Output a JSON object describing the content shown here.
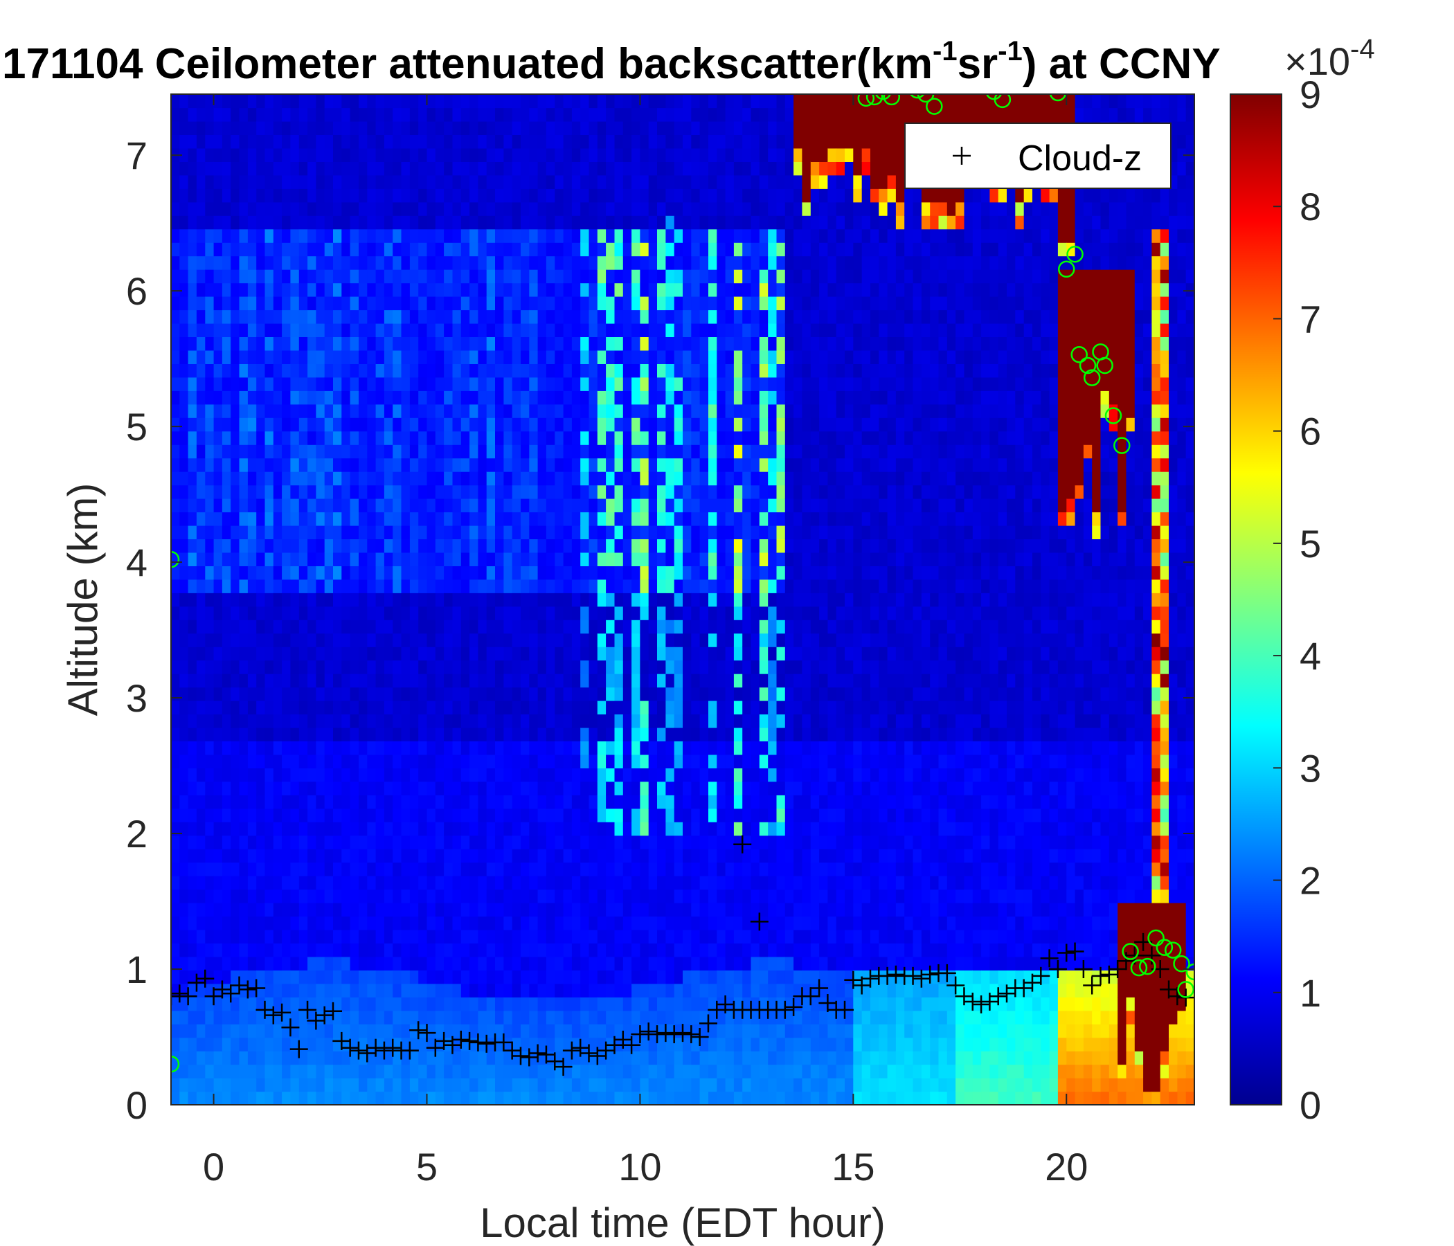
{
  "chart_data": {
    "type": "heatmap",
    "title": {
      "date": "171104",
      "text_main": " Ceilometer attenuated backscatter(km",
      "sup1": "-1",
      "text_mid": "sr",
      "sup2": "-1",
      "text_end": ") at CCNY"
    },
    "xlabel": "Local time (EDT hour)",
    "ylabel": "Altitude (km)",
    "xlim": [
      -1,
      23
    ],
    "ylim": [
      0,
      7.45
    ],
    "xticks": [
      0,
      5,
      10,
      15,
      20
    ],
    "yticks": [
      0,
      1,
      2,
      3,
      4,
      5,
      6,
      7
    ],
    "colorbar": {
      "colormap": "jet",
      "clim": [
        0,
        9
      ],
      "ticks": [
        0,
        1,
        2,
        3,
        4,
        5,
        6,
        7,
        8,
        9
      ],
      "exponent_label": "×10",
      "exponent_power": "-4"
    },
    "grid": false,
    "legend": {
      "location": "top-right",
      "entries": [
        {
          "name": "Cloud-z",
          "marker": "+"
        }
      ]
    },
    "background_field": {
      "description": "blue background ~1, boundary layer 1.5-3.5 below ~1 km, aerosol layers increasing after 17.5 h, thick cloud after 20 h",
      "cloud_regions": [
        {
          "t_start": 13.6,
          "t_end": 19.9,
          "z_bottom_min": 6.6,
          "z_top": 7.45
        },
        {
          "t_start": 19.7,
          "t_end": 20.2,
          "z_bottom_min": 6.2,
          "z_top": 7.45
        },
        {
          "t_start": 19.8,
          "t_end": 21.5,
          "z_bottom_min": 4.1,
          "z_top": 6.2
        },
        {
          "t_start": 21.2,
          "t_end": 22.8,
          "z_bottom_min": 0.1,
          "z_top": 1.5
        }
      ]
    },
    "series": [
      {
        "name": "Cloud-z",
        "marker": "+",
        "color": "#000000",
        "x": [
          -1.0,
          -0.8,
          -0.6,
          -0.4,
          -0.2,
          0.0,
          0.2,
          0.4,
          0.6,
          0.8,
          1.0,
          1.2,
          1.4,
          1.6,
          1.8,
          2.0,
          2.2,
          2.4,
          2.6,
          2.8,
          3.0,
          3.2,
          3.4,
          3.6,
          3.8,
          4.0,
          4.2,
          4.4,
          4.6,
          4.8,
          5.0,
          5.2,
          5.4,
          5.6,
          5.8,
          6.0,
          6.2,
          6.4,
          6.6,
          6.8,
          7.0,
          7.2,
          7.4,
          7.6,
          7.8,
          8.0,
          8.2,
          8.4,
          8.6,
          8.8,
          9.0,
          9.2,
          9.4,
          9.6,
          9.8,
          10.0,
          10.2,
          10.4,
          10.6,
          10.8,
          11.0,
          11.2,
          11.4,
          11.6,
          11.8,
          12.0,
          12.2,
          12.4,
          12.6,
          12.8,
          13.0,
          13.2,
          13.4,
          13.6,
          13.8,
          14.0,
          14.2,
          14.4,
          14.6,
          14.8,
          15.0,
          15.2,
          15.4,
          15.6,
          15.8,
          16.0,
          16.2,
          16.4,
          16.6,
          16.8,
          17.0,
          17.2,
          17.4,
          17.6,
          17.8,
          18.0,
          18.2,
          18.4,
          18.6,
          18.8,
          19.0,
          19.2,
          19.4,
          19.6,
          19.8,
          20.0,
          20.2,
          20.4,
          20.6,
          20.8,
          21.0,
          21.2,
          21.4,
          21.6,
          21.8,
          22.0,
          22.2,
          22.4,
          22.6,
          22.8,
          12.4,
          12.8
        ],
        "y": [
          0.8,
          0.82,
          0.8,
          0.9,
          0.93,
          0.8,
          0.85,
          0.82,
          0.88,
          0.85,
          0.86,
          0.7,
          0.66,
          0.68,
          0.57,
          0.41,
          0.7,
          0.62,
          0.66,
          0.69,
          0.47,
          0.42,
          0.4,
          0.38,
          0.42,
          0.4,
          0.42,
          0.4,
          0.4,
          0.55,
          0.53,
          0.42,
          0.47,
          0.44,
          0.48,
          0.47,
          0.46,
          0.45,
          0.46,
          0.46,
          0.4,
          0.36,
          0.35,
          0.38,
          0.37,
          0.32,
          0.28,
          0.4,
          0.42,
          0.38,
          0.36,
          0.4,
          0.44,
          0.48,
          0.44,
          0.52,
          0.54,
          0.52,
          0.53,
          0.52,
          0.53,
          0.52,
          0.5,
          0.6,
          0.7,
          0.74,
          0.7,
          0.7,
          0.7,
          0.7,
          0.7,
          0.7,
          0.7,
          0.72,
          0.8,
          0.8,
          0.86,
          0.75,
          0.7,
          0.7,
          0.92,
          0.88,
          0.93,
          0.95,
          0.95,
          0.96,
          0.95,
          0.95,
          0.93,
          0.96,
          0.97,
          0.97,
          0.88,
          0.8,
          0.76,
          0.74,
          0.76,
          0.8,
          0.82,
          0.86,
          0.86,
          0.9,
          0.95,
          1.08,
          1.0,
          1.12,
          1.13,
          1.0,
          0.88,
          0.95,
          0.96,
          1.0,
          1.06,
          1.1,
          1.2,
          1.1,
          1.0,
          0.85,
          0.8,
          0.79,
          1.92,
          1.35
        ]
      },
      {
        "name": "",
        "marker": "o",
        "color": "#00ff00",
        "x": [
          -1.0,
          -1.0,
          15.3,
          15.5,
          15.7,
          15.9,
          16.5,
          16.7,
          16.9,
          18.3,
          18.5,
          19.8,
          20.0,
          20.2,
          20.3,
          20.5,
          20.6,
          20.8,
          20.9,
          21.1,
          21.3,
          21.5,
          21.7,
          21.9,
          22.1,
          22.3,
          22.5,
          22.7,
          22.8,
          23.0
        ],
        "y": [
          4.02,
          0.3,
          7.42,
          7.43,
          7.47,
          7.43,
          7.48,
          7.45,
          7.36,
          7.47,
          7.41,
          7.46,
          6.16,
          6.27,
          5.53,
          5.45,
          5.36,
          5.55,
          5.45,
          5.08,
          4.86,
          1.13,
          1.01,
          1.02,
          1.23,
          1.16,
          1.14,
          1.04,
          0.85,
          0.98
        ]
      }
    ]
  }
}
